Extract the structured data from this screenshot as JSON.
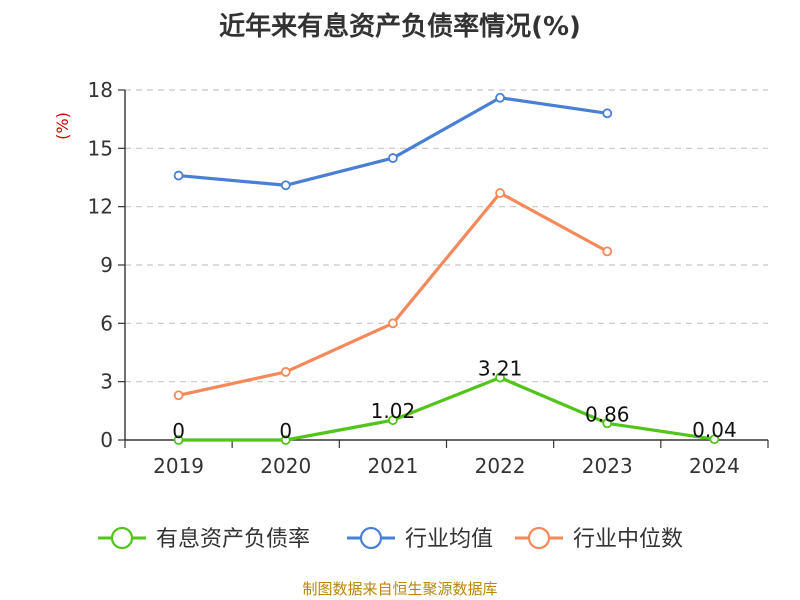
{
  "chart_data": {
    "type": "line",
    "title": "近年来有息资产负债率情况(%)",
    "ylabel": "(%)",
    "xlabel": "",
    "categories": [
      "2019",
      "2020",
      "2021",
      "2022",
      "2023",
      "2024"
    ],
    "ylim": [
      0,
      18
    ],
    "yticks": [
      0,
      3,
      6,
      9,
      12,
      15,
      18
    ],
    "grid": true,
    "legend_position": "bottom",
    "series": [
      {
        "name": "有息资产负债率",
        "color": "#52c41a",
        "values": [
          0,
          0,
          1.02,
          3.21,
          0.86,
          0.04
        ],
        "labels": [
          "0",
          "0",
          "1.02",
          "3.21",
          "0.86",
          "0.04"
        ]
      },
      {
        "name": "行业均值",
        "color": "#4a7fd6",
        "values": [
          13.6,
          13.1,
          14.5,
          17.6,
          16.8,
          null
        ]
      },
      {
        "name": "行业中位数",
        "color": "#f5895a",
        "values": [
          2.3,
          3.5,
          6.0,
          12.7,
          9.7,
          null
        ]
      }
    ]
  },
  "source_text": "制图数据来自恒生聚源数据库"
}
